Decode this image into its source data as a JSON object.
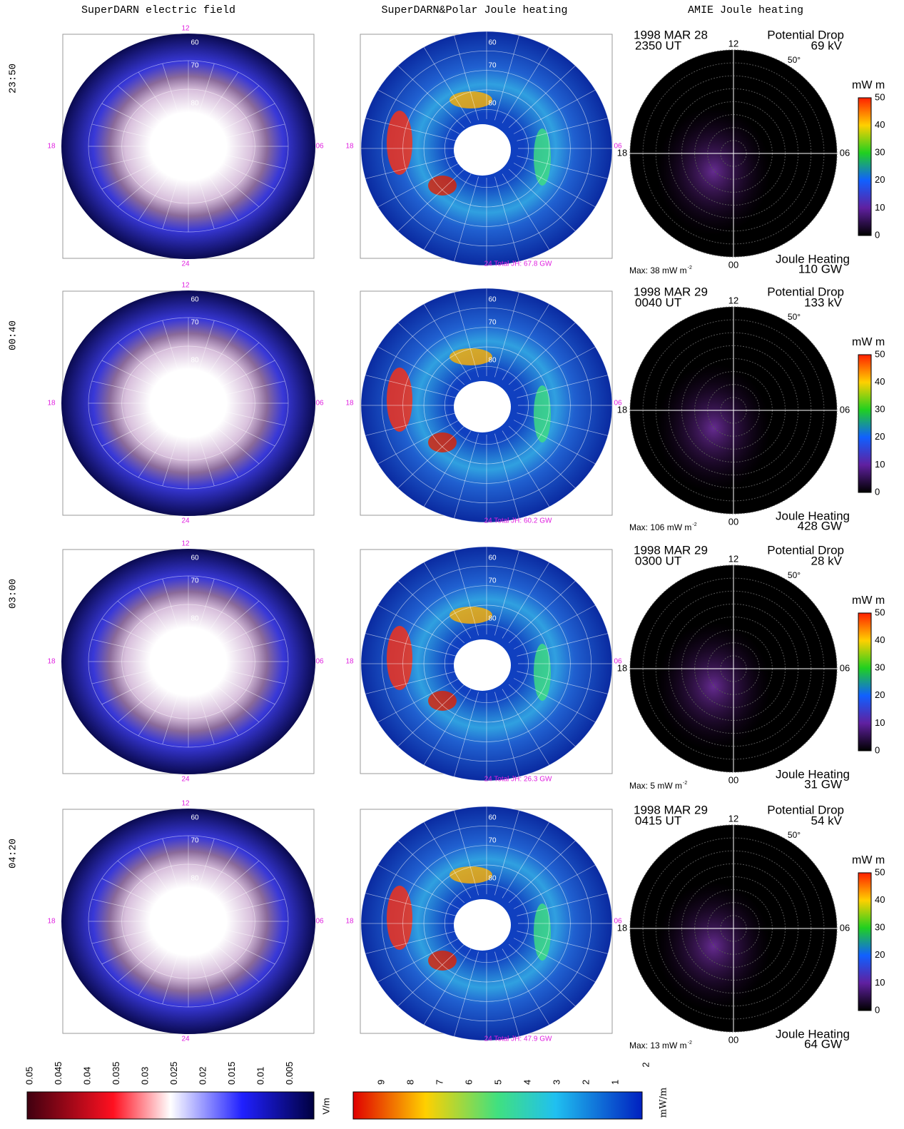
{
  "columns": [
    "SuperDARN electric field",
    "SuperDARN&Polar Joule heating",
    "AMIE Joule heating"
  ],
  "dial": {
    "noon": "12",
    "dusk": "18",
    "dawn": "06",
    "midnight": "24",
    "amie_midnight": "00",
    "lats": [
      "60",
      "70",
      "80"
    ],
    "amie_lat": "50°"
  },
  "amie_colorbar": {
    "unit": "mW m",
    "ticks": [
      "50",
      "40",
      "30",
      "20",
      "10",
      "0"
    ],
    "max_exp": "-2",
    "drop_label": "Potential Drop",
    "jh_label": "Joule Heating"
  },
  "rows": [
    {
      "time": "23:50",
      "joule_total": "24 Total JH: 67.8 GW",
      "date": "1998 MAR 28",
      "ut": "2350 UT",
      "drop": "69 kV",
      "jh": "110 GW",
      "max": "Max: 38 mW m"
    },
    {
      "time": "00:40",
      "joule_total": "24 Total JH: 60.2 GW",
      "date": "1998 MAR 29",
      "ut": "0040 UT",
      "drop": "133 kV",
      "jh": "428 GW",
      "max": "Max: 106 mW m"
    },
    {
      "time": "03:00",
      "joule_total": "24 Total JH: 26.3 GW",
      "date": "1998 MAR 29",
      "ut": "0300 UT",
      "drop": "28 kV",
      "jh": "31 GW",
      "max": "Max: 5 mW m"
    },
    {
      "time": "04:20",
      "joule_total": "24 Total JH: 47.9 GW",
      "date": "1998 MAR 29",
      "ut": "0415 UT",
      "drop": "54 kV",
      "jh": "64 GW",
      "max": "Max: 13 mW m"
    }
  ],
  "efield_colorbar": {
    "unit": "V/m",
    "ticks": [
      "0.05",
      "0.045",
      "0.04",
      "0.035",
      "0.03",
      "0.025",
      "0.02",
      "0.015",
      "0.01",
      "0.005"
    ]
  },
  "joule_colorbar": {
    "unit": "mW/m",
    "exp": "2",
    "ticks": [
      "9",
      "8",
      "7",
      "6",
      "5",
      "4",
      "3",
      "2",
      "1"
    ]
  }
}
